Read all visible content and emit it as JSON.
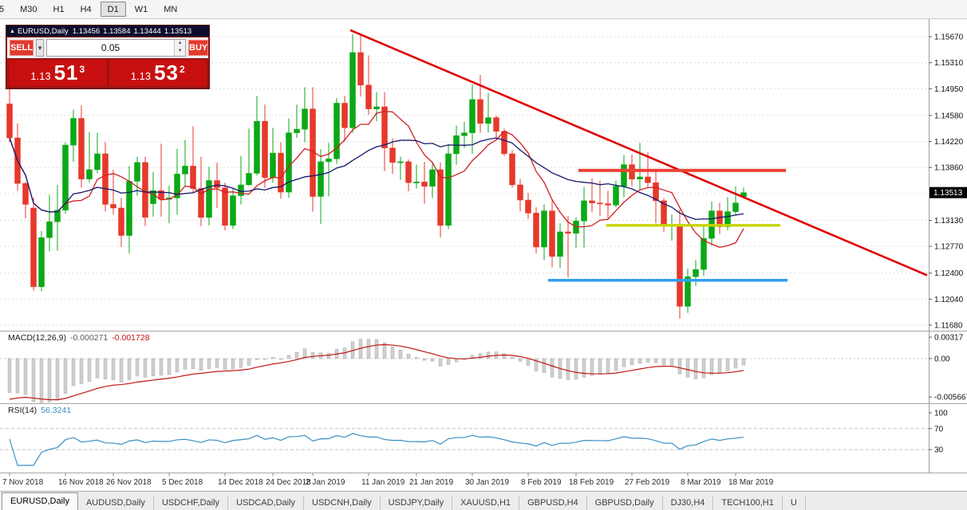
{
  "toolbar": {
    "timeframes": [
      {
        "label": "5",
        "active": false
      },
      {
        "label": "M30",
        "active": false
      },
      {
        "label": "H1",
        "active": false
      },
      {
        "label": "H4",
        "active": false
      },
      {
        "label": "D1",
        "active": true
      },
      {
        "label": "W1",
        "active": false
      },
      {
        "label": "MN",
        "active": false
      }
    ]
  },
  "trade_panel": {
    "title": "EURUSD,Daily",
    "ohlc": {
      "open": "1.13456",
      "high": "1.13584",
      "low": "1.13444",
      "close": "1.13513"
    },
    "sell_label": "SELL",
    "buy_label": "BUY",
    "volume": "0.05",
    "sell_price": {
      "frac": "1.13",
      "pips": "51",
      "pt": "3"
    },
    "buy_price": {
      "frac": "1.13",
      "pips": "53",
      "pt": "2"
    }
  },
  "macd_panel": {
    "label": "MACD(12,26,9)",
    "main_value": "-0.000271",
    "signal_value": "-0.001728",
    "axis": [
      {
        "label": "0.00317",
        "value": 0.00317
      },
      {
        "label": "0.00",
        "value": 0
      },
      {
        "label": "-0.005667",
        "value": -0.005667
      }
    ]
  },
  "rsi_panel": {
    "label": "RSI(14)",
    "value": "56.3241",
    "axis": [
      {
        "label": "100",
        "value": 100
      },
      {
        "label": "70",
        "value": 70
      },
      {
        "label": "30",
        "value": 30
      }
    ],
    "levels": [
      70,
      30
    ]
  },
  "tabs": [
    {
      "label": "EURUSD,Daily",
      "active": true
    },
    {
      "label": "AUDUSD,Daily",
      "active": false
    },
    {
      "label": "USDCHF,Daily",
      "active": false
    },
    {
      "label": "USDCAD,Daily",
      "active": false
    },
    {
      "label": "USDCNH,Daily",
      "active": false
    },
    {
      "label": "USDJPY,Daily",
      "active": false
    },
    {
      "label": "XAUUSD,H1",
      "active": false
    },
    {
      "label": "GBPUSD,H4",
      "active": false
    },
    {
      "label": "GBPUSD,Daily",
      "active": false
    },
    {
      "label": "DJ30,H4",
      "active": false
    },
    {
      "label": "TECH100,H1",
      "active": false
    },
    {
      "label": "U",
      "active": false
    }
  ],
  "chart_data": {
    "type": "candlestick",
    "symbol": "EURUSD",
    "timeframe": "Daily",
    "price_range": {
      "top": 1.1567,
      "bottom": 1.1168
    },
    "grid_prices": [
      1.1567,
      1.1531,
      1.1495,
      1.1458,
      1.1422,
      1.1386,
      1.135,
      1.1313,
      1.1277,
      1.124,
      1.1204,
      1.1168
    ],
    "axis_labels": [
      {
        "label": "1.15670",
        "price": 1.1567
      },
      {
        "label": "1.15310",
        "price": 1.1531
      },
      {
        "label": "1.14950",
        "price": 1.1495
      },
      {
        "label": "1.14580",
        "price": 1.1458
      },
      {
        "label": "1.14220",
        "price": 1.1422
      },
      {
        "label": "1.13860",
        "price": 1.1386
      },
      {
        "label": "1.13130",
        "price": 1.1313
      },
      {
        "label": "1.12770",
        "price": 1.1277
      },
      {
        "label": "1.12400",
        "price": 1.124
      },
      {
        "label": "1.12040",
        "price": 1.1204
      },
      {
        "label": "1.11680",
        "price": 1.1168
      }
    ],
    "current_price": {
      "label": "1.13513",
      "value": 1.13513
    },
    "bull_color": "#0ba817",
    "bear_color": "#e5392b",
    "candles": [
      [
        1.1474,
        1.15,
        1.1421,
        1.1427
      ],
      [
        1.1427,
        1.1447,
        1.1354,
        1.1364
      ],
      [
        1.1364,
        1.1366,
        1.1316,
        1.1335
      ],
      [
        1.133,
        1.1344,
        1.1216,
        1.1221
      ],
      [
        1.1221,
        1.1298,
        1.1215,
        1.1289
      ],
      [
        1.1289,
        1.1348,
        1.127,
        1.1311
      ],
      [
        1.1311,
        1.1362,
        1.1271,
        1.1327
      ],
      [
        1.1327,
        1.1421,
        1.1322,
        1.1417
      ],
      [
        1.1417,
        1.1466,
        1.1394,
        1.1454
      ],
      [
        1.1454,
        1.1472,
        1.1358,
        1.137
      ],
      [
        1.137,
        1.1435,
        1.1365,
        1.1383
      ],
      [
        1.1383,
        1.1434,
        1.1378,
        1.1405
      ],
      [
        1.1405,
        1.1421,
        1.1325,
        1.1335
      ],
      [
        1.1335,
        1.1383,
        1.1321,
        1.133
      ],
      [
        1.133,
        1.1344,
        1.1276,
        1.1292
      ],
      [
        1.1292,
        1.1388,
        1.1267,
        1.1367
      ],
      [
        1.1367,
        1.1401,
        1.1347,
        1.1393
      ],
      [
        1.1393,
        1.1401,
        1.1305,
        1.1317
      ],
      [
        1.1336,
        1.138,
        1.1318,
        1.1354
      ],
      [
        1.1354,
        1.1419,
        1.1318,
        1.1342
      ],
      [
        1.1342,
        1.1361,
        1.1309,
        1.1344
      ],
      [
        1.1344,
        1.1412,
        1.1321,
        1.1377
      ],
      [
        1.1377,
        1.1424,
        1.136,
        1.1388
      ],
      [
        1.1388,
        1.1443,
        1.1351,
        1.1357
      ],
      [
        1.1357,
        1.1401,
        1.1305,
        1.1317
      ],
      [
        1.1317,
        1.1387,
        1.1306,
        1.1368
      ],
      [
        1.1368,
        1.1393,
        1.133,
        1.1358
      ],
      [
        1.1358,
        1.1365,
        1.1299,
        1.1306
      ],
      [
        1.1306,
        1.1358,
        1.1301,
        1.1347
      ],
      [
        1.1347,
        1.1402,
        1.1335,
        1.1362
      ],
      [
        1.1362,
        1.144,
        1.1361,
        1.1378
      ],
      [
        1.1378,
        1.1485,
        1.1375,
        1.145
      ],
      [
        1.145,
        1.1473,
        1.1358,
        1.1372
      ],
      [
        1.1372,
        1.1441,
        1.1365,
        1.1406
      ],
      [
        1.1406,
        1.1421,
        1.1343,
        1.1352
      ],
      [
        1.1352,
        1.1454,
        1.1344,
        1.1434
      ],
      [
        1.1434,
        1.1473,
        1.1427,
        1.1439
      ],
      [
        1.1439,
        1.1497,
        1.1421,
        1.1467
      ],
      [
        1.1467,
        1.1497,
        1.1325,
        1.1346
      ],
      [
        1.1346,
        1.1411,
        1.1308,
        1.1394
      ],
      [
        1.1394,
        1.142,
        1.1346,
        1.1398
      ],
      [
        1.1398,
        1.1482,
        1.1391,
        1.1475
      ],
      [
        1.1475,
        1.1485,
        1.1422,
        1.1441
      ],
      [
        1.1441,
        1.157,
        1.1434,
        1.1545
      ],
      [
        1.1545,
        1.1571,
        1.1484,
        1.15
      ],
      [
        1.15,
        1.1541,
        1.1459,
        1.1467
      ],
      [
        1.1467,
        1.149,
        1.145,
        1.147
      ],
      [
        1.147,
        1.149,
        1.1381,
        1.1413
      ],
      [
        1.1413,
        1.1426,
        1.1377,
        1.1393
      ],
      [
        1.1393,
        1.1401,
        1.1369,
        1.1394
      ],
      [
        1.1394,
        1.1397,
        1.1353,
        1.1365
      ],
      [
        1.1365,
        1.139,
        1.1357,
        1.1366
      ],
      [
        1.1366,
        1.1394,
        1.1336,
        1.136
      ],
      [
        1.136,
        1.1394,
        1.1344,
        1.1383
      ],
      [
        1.1383,
        1.1393,
        1.1289,
        1.1306
      ],
      [
        1.1306,
        1.1418,
        1.1301,
        1.1405
      ],
      [
        1.1405,
        1.1444,
        1.139,
        1.143
      ],
      [
        1.143,
        1.1449,
        1.1413,
        1.1434
      ],
      [
        1.1434,
        1.1501,
        1.1405,
        1.148
      ],
      [
        1.148,
        1.1514,
        1.1434,
        1.1447
      ],
      [
        1.1447,
        1.1489,
        1.1434,
        1.1455
      ],
      [
        1.1455,
        1.1458,
        1.1424,
        1.1436
      ],
      [
        1.1436,
        1.144,
        1.1402,
        1.1405
      ],
      [
        1.1405,
        1.141,
        1.1358,
        1.1362
      ],
      [
        1.1362,
        1.137,
        1.1325,
        1.1341
      ],
      [
        1.1341,
        1.1351,
        1.1315,
        1.1323
      ],
      [
        1.1323,
        1.1331,
        1.1267,
        1.1276
      ],
      [
        1.1276,
        1.1335,
        1.1258,
        1.1326
      ],
      [
        1.1326,
        1.1341,
        1.1248,
        1.1263
      ],
      [
        1.1263,
        1.1309,
        1.1247,
        1.1297
      ],
      [
        1.1297,
        1.1319,
        1.1234,
        1.1295
      ],
      [
        1.1295,
        1.1317,
        1.1275,
        1.1312
      ],
      [
        1.1312,
        1.1359,
        1.1275,
        1.134
      ],
      [
        1.134,
        1.1371,
        1.1324,
        1.1337
      ],
      [
        1.1337,
        1.1368,
        1.1319,
        1.1336
      ],
      [
        1.1336,
        1.1354,
        1.1315,
        1.1334
      ],
      [
        1.1334,
        1.1368,
        1.1331,
        1.136
      ],
      [
        1.136,
        1.1403,
        1.1345,
        1.139
      ],
      [
        1.139,
        1.1404,
        1.136,
        1.137
      ],
      [
        1.137,
        1.142,
        1.1354,
        1.1373
      ],
      [
        1.1373,
        1.1407,
        1.1358,
        1.1365
      ],
      [
        1.1365,
        1.1383,
        1.1309,
        1.134
      ],
      [
        1.134,
        1.1344,
        1.1297,
        1.1306
      ],
      [
        1.1306,
        1.1321,
        1.1285,
        1.1307
      ],
      [
        1.1307,
        1.1328,
        1.1177,
        1.1194
      ],
      [
        1.1194,
        1.1246,
        1.1185,
        1.1235
      ],
      [
        1.1235,
        1.1258,
        1.1222,
        1.1245
      ],
      [
        1.1245,
        1.1306,
        1.1236,
        1.1288
      ],
      [
        1.1288,
        1.1339,
        1.1278,
        1.1326
      ],
      [
        1.1326,
        1.1337,
        1.1294,
        1.1304
      ],
      [
        1.1304,
        1.1345,
        1.1299,
        1.1325
      ],
      [
        1.1325,
        1.136,
        1.1321,
        1.1337
      ],
      [
        1.13456,
        1.13584,
        1.13444,
        1.13513
      ]
    ],
    "date_labels": [
      {
        "label": "7 Nov 2018",
        "i": 0
      },
      {
        "label": "16 Nov 2018",
        "i": 7
      },
      {
        "label": "26 Nov 2018",
        "i": 13
      },
      {
        "label": "5 Dec 2018",
        "i": 20
      },
      {
        "label": "14 Dec 2018",
        "i": 27
      },
      {
        "label": "24 Dec 2018",
        "i": 33
      },
      {
        "label": "2 Jan 2019",
        "i": 38
      },
      {
        "label": "11 Jan 2019",
        "i": 45
      },
      {
        "label": "21 Jan 2019",
        "i": 51
      },
      {
        "label": "30 Jan 2019",
        "i": 58
      },
      {
        "label": "8 Feb 2019",
        "i": 65
      },
      {
        "label": "18 Feb 2019",
        "i": 71
      },
      {
        "label": "27 Feb 2019",
        "i": 78
      },
      {
        "label": "8 Mar 2019",
        "i": 85
      },
      {
        "label": "18 Mar 2019",
        "i": 91
      }
    ],
    "overlays": {
      "ma_fast": {
        "period": 8,
        "color": "#cf1f1f"
      },
      "ma_slow": {
        "period": 21,
        "color": "#17176e"
      },
      "trendline": {
        "i1": 42.7,
        "p1": 1.1576,
        "i2": 115,
        "p2": 1.1237,
        "color": "#e00000",
        "width": 2.6
      },
      "hlines": [
        {
          "name": "resistance-line",
          "price": 1.1382,
          "i1": 71.3,
          "i2": 97.3,
          "color": "#ea4335",
          "width": 4
        },
        {
          "name": "pivot-line",
          "price": 1.1306,
          "i1": 74.8,
          "i2": 96.6,
          "color": "#c6d400",
          "width": 3.4
        },
        {
          "name": "support-line",
          "price": 1.123,
          "i1": 67.5,
          "i2": 97.5,
          "color": "#2f9ff0",
          "width": 3.4
        }
      ]
    },
    "indicators": {
      "macd": {
        "fast": 12,
        "slow": 26,
        "signal": 9,
        "main": -0.000271,
        "signal_value": -0.001728
      },
      "rsi": {
        "period": 14,
        "value": 56.3241
      }
    }
  }
}
